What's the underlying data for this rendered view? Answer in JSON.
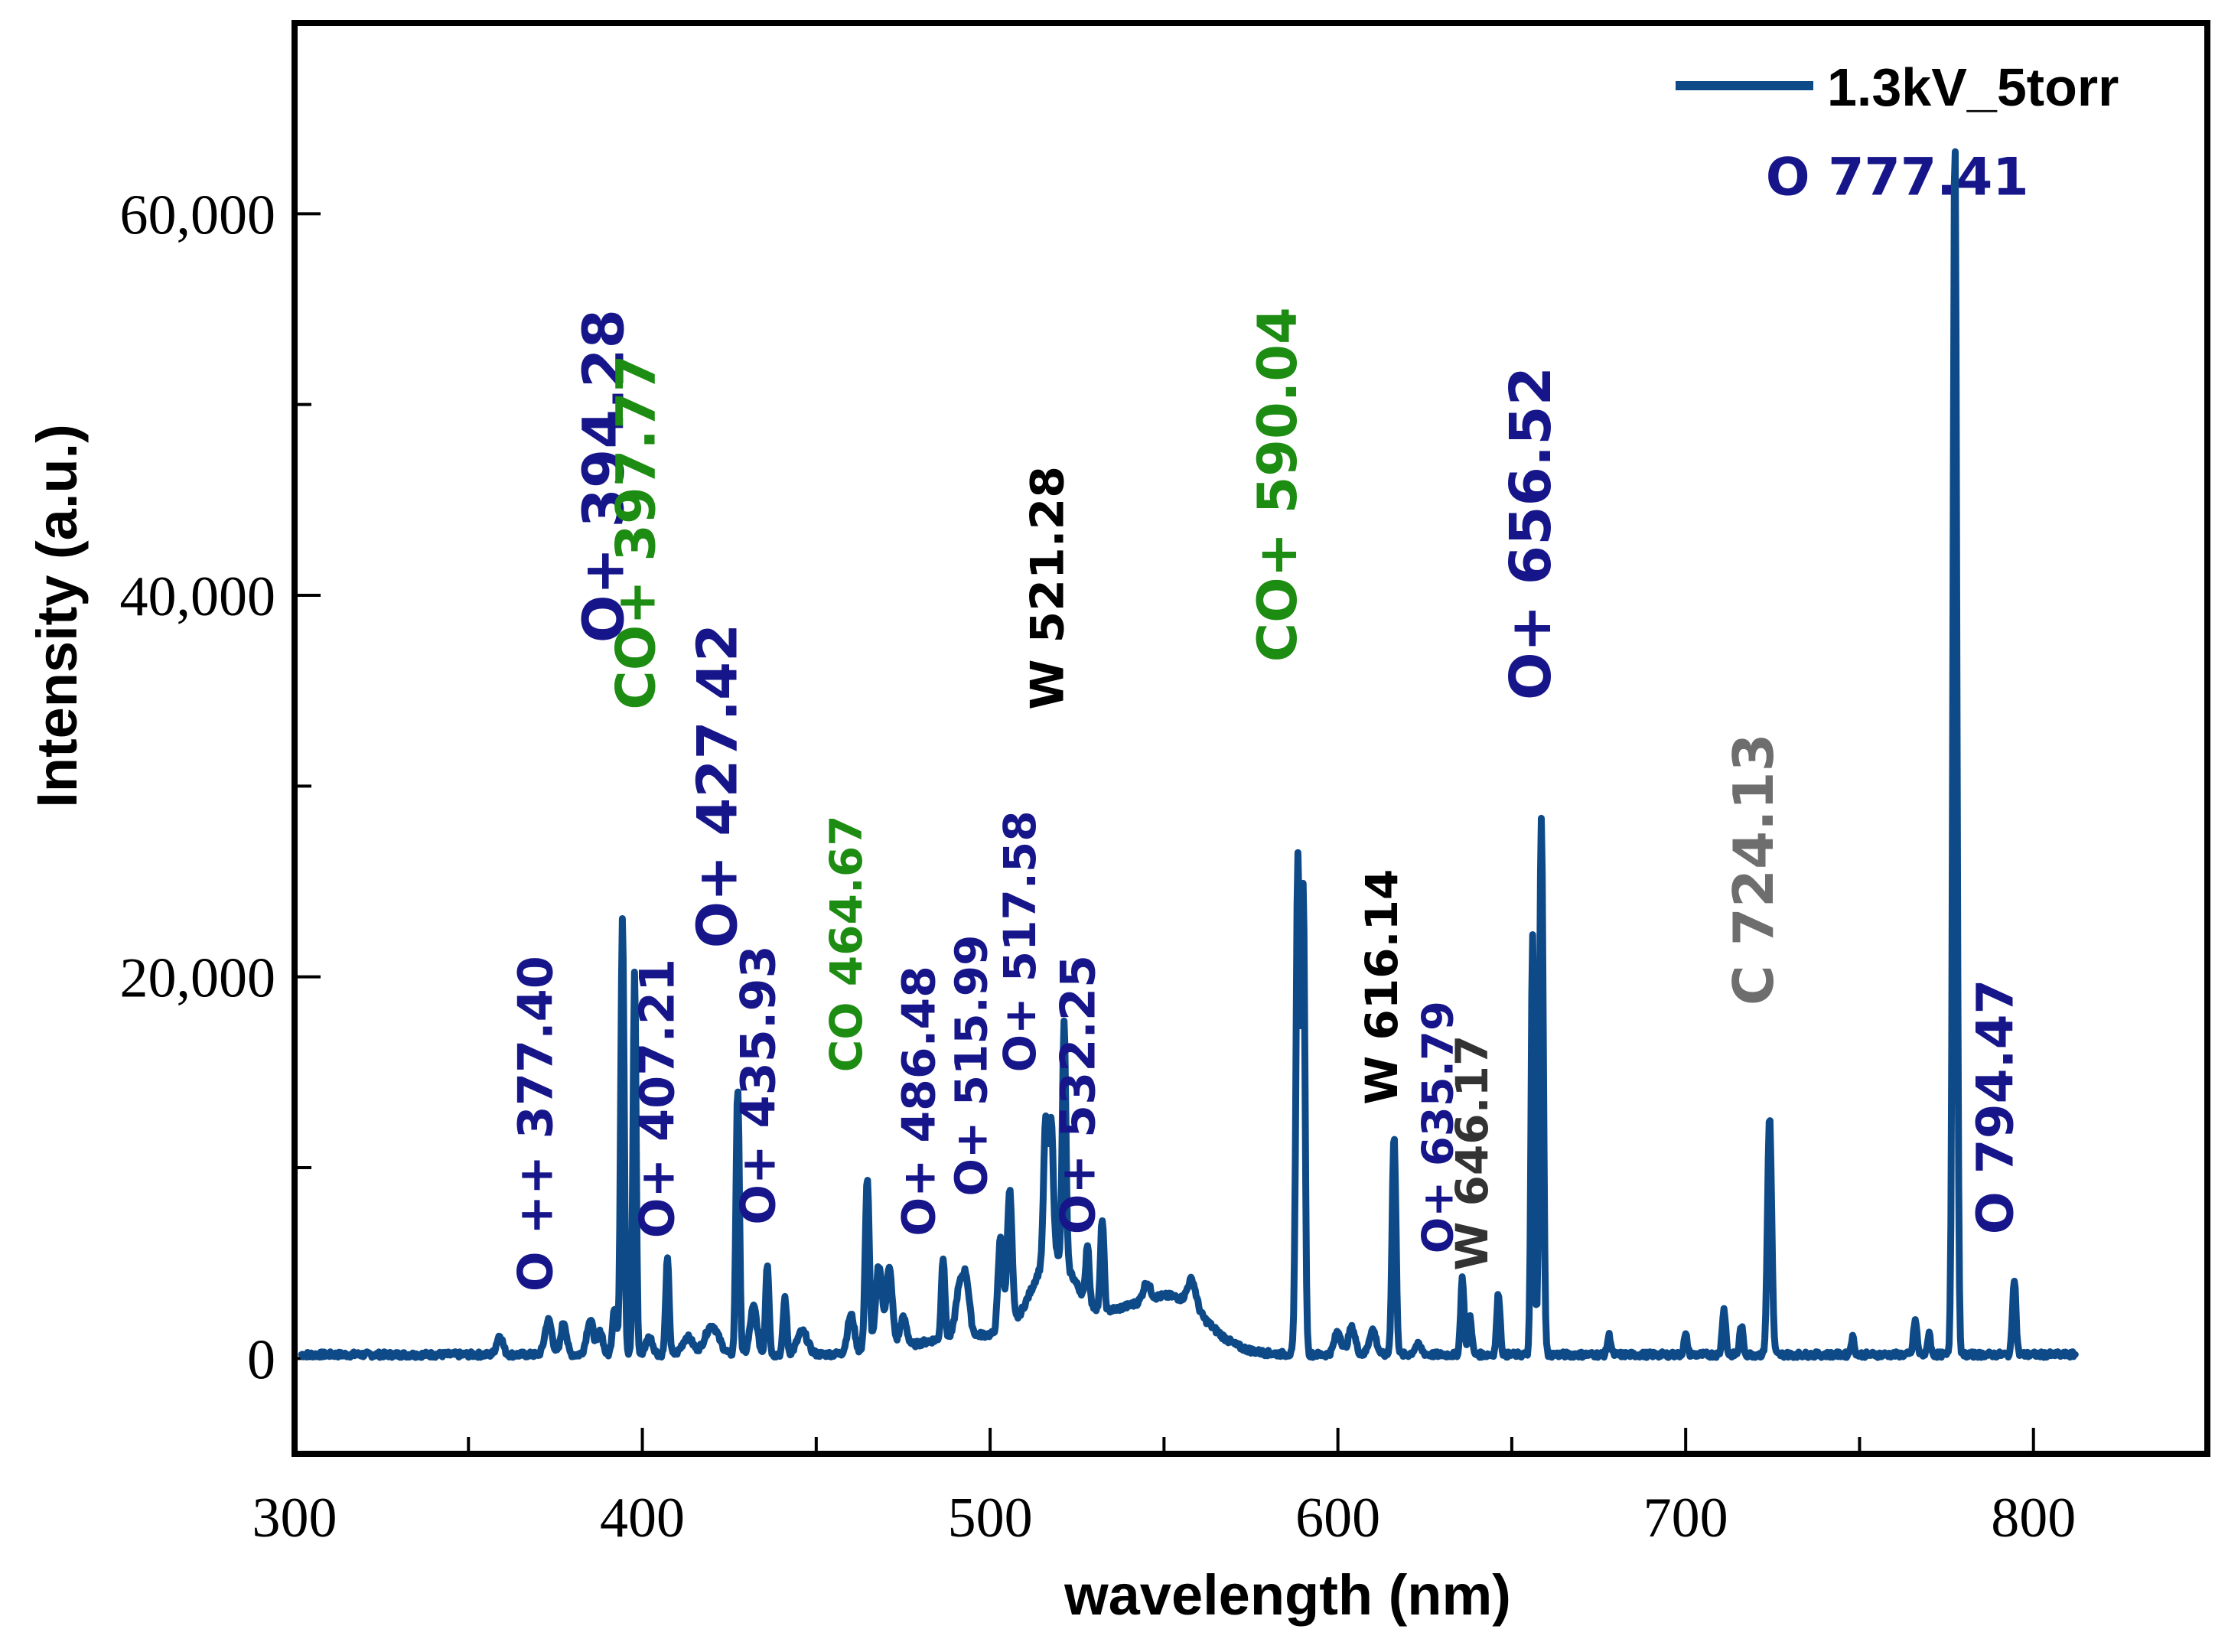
{
  "chart_data": {
    "type": "line",
    "xlabel": "wavelength (nm)",
    "ylabel": "Intensity (a.u.)",
    "xlim": [
      300,
      850
    ],
    "ylim": [
      -5000,
      70000
    ],
    "xticks": [
      300,
      400,
      500,
      600,
      700,
      800
    ],
    "xtick_labels": [
      "300",
      "400",
      "500",
      "600",
      "700",
      "800"
    ],
    "xminor": [
      350,
      450,
      550,
      650,
      750
    ],
    "yticks": [
      0,
      20000,
      40000,
      60000
    ],
    "ytick_labels": [
      "0",
      "20,000",
      "40,000",
      "60,000"
    ],
    "yminor": [
      10000,
      30000,
      50000
    ],
    "legend": {
      "position": "top-right",
      "entries": [
        {
          "name": "1.3kV_5torr",
          "color": "#0e4a87"
        }
      ]
    },
    "series": [
      {
        "name": "1.3kV_5torr",
        "color": "#0e4a87",
        "baseline": 200,
        "noise": 300,
        "x_end": 812,
        "peaks": [
          [
            359,
            1000,
            0.9
          ],
          [
            373,
            1800,
            1.0
          ],
          [
            377.4,
            1700,
            0.8
          ],
          [
            385,
            1800,
            1.0
          ],
          [
            388,
            1200,
            0.7
          ],
          [
            392,
            2500,
            0.6
          ],
          [
            394.28,
            23000,
            0.5
          ],
          [
            397.77,
            20000,
            0.45
          ],
          [
            402,
            900,
            1.0
          ],
          [
            407.21,
            5000,
            0.5
          ],
          [
            413,
            900,
            1.5
          ],
          [
            420,
            1500,
            2.0
          ],
          [
            427.42,
            14000,
            0.5
          ],
          [
            432,
            2500,
            1.0
          ],
          [
            435.93,
            4800,
            0.5
          ],
          [
            441,
            3000,
            0.5
          ],
          [
            446,
            1200,
            1.5
          ],
          [
            460,
            2000,
            1.0
          ],
          [
            464.67,
            9000,
            0.6
          ],
          [
            468,
            4500,
            0.9
          ],
          [
            471,
            4200,
            0.9
          ],
          [
            475,
            1500,
            1.0
          ],
          [
            486.48,
            4300,
            0.5
          ],
          [
            491,
            2200,
            1.0
          ],
          [
            493,
            3000,
            1.0
          ],
          [
            503,
            5000,
            0.7
          ],
          [
            505.6,
            7200,
            0.7
          ],
          [
            515.99,
            7300,
            0.6
          ],
          [
            517.58,
            6800,
            0.6
          ],
          [
            521.28,
            12500,
            0.5
          ],
          [
            528,
            3000,
            0.5
          ],
          [
            532.25,
            4800,
            0.5
          ],
          [
            545,
            900,
            1.0
          ],
          [
            558,
            1400,
            1.2
          ],
          [
            588.5,
            26000,
            0.55
          ],
          [
            590.04,
            24000,
            0.5
          ],
          [
            600,
            1200,
            1.0
          ],
          [
            604,
            1400,
            1.0
          ],
          [
            610,
            1300,
            1.0
          ],
          [
            616.14,
            11500,
            0.55
          ],
          [
            623,
            500,
            1.0
          ],
          [
            635.79,
            4000,
            0.5
          ],
          [
            638,
            2000,
            0.5
          ],
          [
            646.17,
            3200,
            0.5
          ],
          [
            656,
            22000,
            0.45
          ],
          [
            658.5,
            28000,
            0.55
          ],
          [
            678,
            1000,
            0.5
          ],
          [
            700,
            1000,
            0.5
          ],
          [
            711,
            2400,
            0.5
          ],
          [
            716,
            1500,
            0.5
          ],
          [
            724.13,
            12500,
            0.6
          ],
          [
            748,
            900,
            0.5
          ],
          [
            766,
            1800,
            0.5
          ],
          [
            770,
            1200,
            0.4
          ],
          [
            777.41,
            64000,
            0.55
          ],
          [
            794.47,
            4000,
            0.5
          ]
        ],
        "humps": [
          [
            495,
            1000,
            15
          ],
          [
            518,
            4200,
            6
          ],
          [
            540,
            2300,
            15
          ],
          [
            555,
            1500,
            8
          ]
        ]
      }
    ],
    "annotations": [
      {
        "text": "O 777.41",
        "color": "#16168a",
        "x": 723,
        "y": 61000,
        "rotate": 0,
        "size": 68
      },
      {
        "text": "O+ 394.28",
        "color": "#16168a",
        "x": 394.5,
        "y": 37500,
        "rotate": -90,
        "size": 74
      },
      {
        "text": "CO+ 397.77",
        "color": "#1d8c12",
        "x": 403.5,
        "y": 34000,
        "rotate": -90,
        "size": 70
      },
      {
        "text": "O+ 427.42",
        "color": "#16168a",
        "x": 427,
        "y": 21500,
        "rotate": -90,
        "size": 72
      },
      {
        "text": "W 521.28",
        "color": "#000000",
        "x": 521,
        "y": 34000,
        "rotate": -90,
        "size": 60
      },
      {
        "text": "CO+ 590.04",
        "color": "#1d8c12",
        "x": 588,
        "y": 36500,
        "rotate": -90,
        "size": 70
      },
      {
        "text": "O+ 656.52",
        "color": "#16168a",
        "x": 661,
        "y": 34500,
        "rotate": -90,
        "size": 74
      },
      {
        "text": "C 724.13",
        "color": "#6e6e6e",
        "x": 725,
        "y": 18500,
        "rotate": -90,
        "size": 72
      },
      {
        "text": "O ++ 377.40",
        "color": "#16168a",
        "x": 374,
        "y": 3500,
        "rotate": -90,
        "size": 62
      },
      {
        "text": "O+ 407.21",
        "color": "#16168a",
        "x": 409,
        "y": 6300,
        "rotate": -90,
        "size": 62
      },
      {
        "text": "O+ 435.93",
        "color": "#16168a",
        "x": 438,
        "y": 7000,
        "rotate": -90,
        "size": 62
      },
      {
        "text": "CO 464.67",
        "color": "#1d8c12",
        "x": 463,
        "y": 15000,
        "rotate": -90,
        "size": 58
      },
      {
        "text": "O+ 486.48",
        "color": "#16168a",
        "x": 484,
        "y": 6400,
        "rotate": -90,
        "size": 60
      },
      {
        "text": "O+ 515.99",
        "color": "#16168a",
        "x": 499,
        "y": 8500,
        "rotate": -90,
        "size": 58
      },
      {
        "text": "O+ 517.58",
        "color": "#16168a",
        "x": 513,
        "y": 15000,
        "rotate": -90,
        "size": 58
      },
      {
        "text": "O+ 532.25",
        "color": "#16168a",
        "x": 530,
        "y": 6500,
        "rotate": -90,
        "size": 62
      },
      {
        "text": "W 616.14",
        "color": "#000000",
        "x": 617,
        "y": 13300,
        "rotate": -90,
        "size": 58
      },
      {
        "text": "O+ 635.79",
        "color": "#16168a",
        "x": 633,
        "y": 5500,
        "rotate": -90,
        "size": 56
      },
      {
        "text": "W 646.17",
        "color": "#333333",
        "x": 643,
        "y": 4600,
        "rotate": -90,
        "size": 58
      },
      {
        "text": "O 794.47",
        "color": "#16168a",
        "x": 794,
        "y": 6500,
        "rotate": -90,
        "size": 66
      }
    ]
  }
}
